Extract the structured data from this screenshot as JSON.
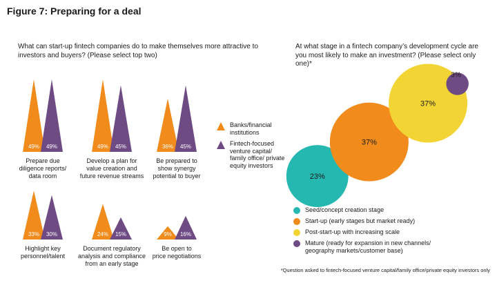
{
  "figure_title": "Figure 7: Preparing for a deal",
  "colors": {
    "orange": "#f08b1c",
    "purple": "#6f4b84",
    "teal": "#25b8b1",
    "yellow": "#f2d535",
    "axis": "#444444",
    "label_text": "#ffffff"
  },
  "left": {
    "question": "What can start-up fintech companies do to make themselves more attractive to investors and buyers? (Please select top two)",
    "legend": [
      {
        "label": "Banks/financial institutions",
        "color_key": "orange"
      },
      {
        "label": "Fintech-focused venture capital/ family office/ private equity investors",
        "color_key": "purple"
      }
    ]
  },
  "right": {
    "question": "At what stage in a fintech company’s development cycle are you most likely to make an investment? (Please select only one)*",
    "legend": [
      {
        "label": "Seed/concept creation stage",
        "color_key": "teal"
      },
      {
        "label": "Start-up (early stages but market ready)",
        "color_key": "orange"
      },
      {
        "label": "Post-start-up with increasing scale",
        "color_key": "yellow"
      },
      {
        "label": "Mature (ready for expansion in new channels/ geography markets/customer base)",
        "color_key": "purple"
      }
    ],
    "footnote": "*Question asked to fintech-focused venture capital/family office/private equity investors only"
  },
  "chart_data": [
    {
      "type": "bar",
      "style": "triangle-columns",
      "categories": [
        "Prepare due diligence reports/ data room",
        "Develop a plan for value creation and future revenue streams",
        "Be prepared to show synergy potential to buyer",
        "Highlight key personnel/talent",
        "Document regulatory analysis and compliance from an early stage",
        "Be open to price negotiations"
      ],
      "category_lines": [
        [
          "Prepare due",
          "diligence reports/",
          "data room"
        ],
        [
          "Develop a plan for",
          "value creation and",
          "future revenue streams"
        ],
        [
          "Be prepared to",
          "show synergy",
          "potential to buyer"
        ],
        [
          "Highlight key",
          "personnel/talent"
        ],
        [
          "Document regulatory",
          "analysis and compliance",
          "from an early stage"
        ],
        [
          "Be open to",
          "price negotiations"
        ]
      ],
      "series": [
        {
          "name": "Banks/financial institutions",
          "values": [
            49,
            49,
            36,
            33,
            24,
            9
          ],
          "labels": [
            "49%",
            "49%",
            "36%",
            "33%",
            "24%",
            "9%"
          ]
        },
        {
          "name": "Fintech-focused venture capital/ family office/ private equity investors",
          "values": [
            49,
            45,
            45,
            30,
            15,
            16
          ],
          "labels": [
            "49%",
            "45%",
            "45%",
            "30%",
            "15%",
            "16%"
          ]
        }
      ],
      "unit": "%"
    },
    {
      "type": "bubble",
      "categories": [
        "Seed/concept creation stage",
        "Start-up (early stages but market ready)",
        "Post-start-up with increasing scale",
        "Mature (ready for expansion in new channels/ geography markets/customer base)"
      ],
      "values": [
        23,
        37,
        37,
        3
      ],
      "labels": [
        "23%",
        "37%",
        "37%",
        "3%"
      ],
      "unit": "%"
    }
  ]
}
